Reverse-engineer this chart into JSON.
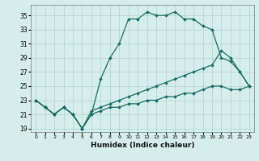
{
  "xlabel": "Humidex (Indice chaleur)",
  "xlim": [
    -0.5,
    23.5
  ],
  "ylim": [
    18.5,
    36.5
  ],
  "xticks": [
    0,
    1,
    2,
    3,
    4,
    5,
    6,
    7,
    8,
    9,
    10,
    11,
    12,
    13,
    14,
    15,
    16,
    17,
    18,
    19,
    20,
    21,
    22,
    23
  ],
  "yticks": [
    19,
    21,
    23,
    25,
    27,
    29,
    31,
    33,
    35
  ],
  "bg_color": "#d6eeeb",
  "line_color": "#1a6e65",
  "grid_color": "#aed4cf",
  "line1_x": [
    0,
    1,
    2,
    3,
    4,
    5,
    6,
    7,
    8,
    9,
    10,
    11,
    12,
    13,
    14,
    15,
    16,
    17,
    18,
    19,
    20,
    21,
    22,
    23
  ],
  "line1_y": [
    23,
    22,
    21,
    22,
    21,
    19,
    21,
    26,
    29,
    31,
    34.5,
    34.5,
    35.5,
    35,
    35,
    35.5,
    34.5,
    34.5,
    33.5,
    33,
    29,
    28.5,
    27,
    25
  ],
  "line2_x": [
    0,
    1,
    2,
    3,
    4,
    5,
    6,
    7,
    8,
    9,
    10,
    11,
    12,
    13,
    14,
    15,
    16,
    17,
    18,
    19,
    20,
    21,
    22,
    23
  ],
  "line2_y": [
    23,
    22,
    21,
    22,
    21,
    19,
    21.5,
    22,
    22.5,
    23,
    23.5,
    24,
    24.5,
    25,
    25.5,
    26,
    26.5,
    27,
    27.5,
    28,
    30,
    29,
    27,
    25
  ],
  "line3_x": [
    0,
    1,
    2,
    3,
    4,
    5,
    6,
    7,
    8,
    9,
    10,
    11,
    12,
    13,
    14,
    15,
    16,
    17,
    18,
    19,
    20,
    21,
    22,
    23
  ],
  "line3_y": [
    23,
    22,
    21,
    22,
    21,
    19,
    21,
    21.5,
    22,
    22,
    22.5,
    22.5,
    23,
    23,
    23.5,
    23.5,
    24,
    24,
    24.5,
    25,
    25,
    24.5,
    24.5,
    25
  ]
}
